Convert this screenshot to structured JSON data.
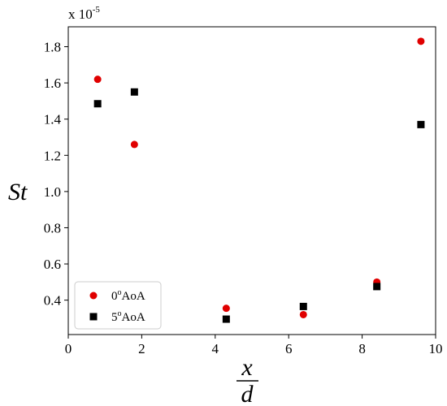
{
  "chart_data": {
    "type": "scatter",
    "title": "",
    "xlabel_num": "x",
    "xlabel_den": "d",
    "ylabel": "St",
    "y_multiplier": {
      "base": "x 10",
      "exp": "-5"
    },
    "xlim": [
      0,
      10
    ],
    "ylim": [
      0.21,
      1.91
    ],
    "xticks": [
      0,
      2,
      4,
      6,
      8,
      10
    ],
    "yticks": [
      0.4,
      0.6,
      0.8,
      1.0,
      1.2,
      1.4,
      1.6,
      1.8
    ],
    "ytick_labels": [
      "0.4",
      "0.6",
      "0.8",
      "1.0",
      "1.2",
      "1.4",
      "1.6",
      "1.8"
    ],
    "grid": false,
    "legend_position": "lower-left",
    "series": [
      {
        "name_base": "0",
        "name_sup": "o",
        "name_tail": "AoA",
        "marker": "circle",
        "color": "#e00000",
        "x": [
          0.8,
          1.8,
          4.3,
          6.4,
          8.4,
          9.6
        ],
        "y": [
          1.62,
          1.26,
          0.355,
          0.32,
          0.5,
          1.83
        ]
      },
      {
        "name_base": "5",
        "name_sup": "o",
        "name_tail": "AoA",
        "marker": "square",
        "color": "#000000",
        "x": [
          0.8,
          1.8,
          4.3,
          6.4,
          8.4,
          9.6
        ],
        "y": [
          1.485,
          1.55,
          0.295,
          0.365,
          0.475,
          1.37
        ]
      }
    ]
  }
}
